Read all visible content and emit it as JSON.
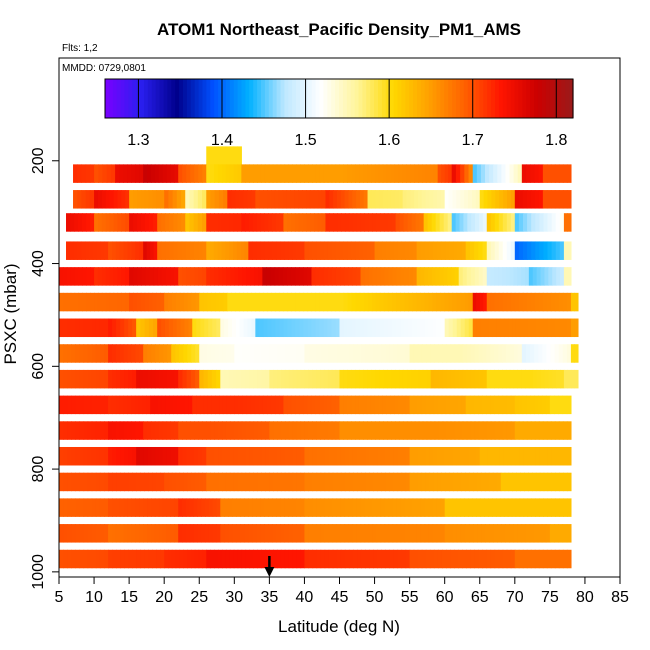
{
  "chart_data": {
    "type": "heatmap",
    "title": "ATOM1 Northeast_Pacific Density_PM1_AMS",
    "flights_note": "Flts: 1,2",
    "date_note": "MMDD: 0729,0801",
    "xlabel": "Latitude (deg N)",
    "ylabel": "PSXC (mbar)",
    "xlim": [
      5,
      85
    ],
    "ylim": [
      1010,
      0
    ],
    "x_ticks": [
      "5",
      "10",
      "15",
      "20",
      "25",
      "30",
      "35",
      "40",
      "45",
      "50",
      "55",
      "60",
      "65",
      "70",
      "75",
      "80",
      "85"
    ],
    "y_ticks": [
      "200",
      "400",
      "600",
      "800",
      "1000"
    ],
    "colorbar": {
      "range": [
        1.26,
        1.82
      ],
      "ticks": [
        "1.3",
        "1.4",
        "1.5",
        "1.6",
        "1.7",
        "1.8"
      ],
      "colors": [
        "#7a00ff",
        "#2a1ff0",
        "#00008c",
        "#0050ff",
        "#00b0ff",
        "#bfe8ff",
        "#ffffff",
        "#fff59a",
        "#ffd800",
        "#ffa000",
        "#ff6000",
        "#ff1500",
        "#cc0000",
        "#9a1a1a"
      ]
    },
    "marker": {
      "label": "arrow",
      "latitude": 35
    },
    "series": [
      {
        "p": 190,
        "segments": [
          [
            26,
            31,
            1.6
          ]
        ]
      },
      {
        "p": 225,
        "segments": [
          [
            7,
            10,
            1.72
          ],
          [
            10,
            13,
            1.7
          ],
          [
            13,
            17,
            1.75
          ],
          [
            17,
            22,
            1.78
          ],
          [
            22,
            26,
            1.7
          ],
          [
            26,
            31,
            1.6
          ],
          [
            31,
            45,
            1.65
          ],
          [
            45,
            59,
            1.65
          ],
          [
            59,
            61,
            1.7
          ],
          [
            61,
            64,
            1.75
          ],
          [
            64,
            71,
            1.45
          ],
          [
            71,
            74,
            1.75
          ],
          [
            74,
            78,
            1.7
          ]
        ]
      },
      {
        "p": 275,
        "segments": [
          [
            7,
            10,
            1.7
          ],
          [
            10,
            15,
            1.75
          ],
          [
            15,
            20,
            1.65
          ],
          [
            20,
            23,
            1.68
          ],
          [
            23,
            26,
            1.55
          ],
          [
            26,
            29,
            1.65
          ],
          [
            29,
            33,
            1.72
          ],
          [
            33,
            43,
            1.7
          ],
          [
            43,
            49,
            1.72
          ],
          [
            49,
            54,
            1.58
          ],
          [
            54,
            60,
            1.57
          ],
          [
            60,
            65,
            1.52
          ],
          [
            65,
            70,
            1.6
          ],
          [
            70,
            74,
            1.75
          ],
          [
            74,
            78,
            1.7
          ]
        ]
      },
      {
        "p": 320,
        "segments": [
          [
            6,
            10,
            1.75
          ],
          [
            10,
            15,
            1.68
          ],
          [
            15,
            19,
            1.75
          ],
          [
            19,
            23,
            1.68
          ],
          [
            23,
            26,
            1.62
          ],
          [
            26,
            31,
            1.72
          ],
          [
            31,
            37,
            1.73
          ],
          [
            37,
            43,
            1.68
          ],
          [
            43,
            53,
            1.72
          ],
          [
            53,
            57,
            1.7
          ],
          [
            57,
            61,
            1.62
          ],
          [
            61,
            66,
            1.45
          ],
          [
            66,
            70,
            1.62
          ],
          [
            70,
            77,
            1.45
          ],
          [
            77,
            78,
            1.68
          ]
        ]
      },
      {
        "p": 375,
        "segments": [
          [
            6,
            12,
            1.72
          ],
          [
            12,
            17,
            1.7
          ],
          [
            17,
            19,
            1.76
          ],
          [
            19,
            26,
            1.68
          ],
          [
            26,
            32,
            1.64
          ],
          [
            32,
            40,
            1.72
          ],
          [
            40,
            50,
            1.7
          ],
          [
            50,
            56,
            1.67
          ],
          [
            56,
            63,
            1.65
          ],
          [
            63,
            66,
            1.62
          ],
          [
            66,
            70,
            1.55
          ],
          [
            70,
            77,
            1.4
          ],
          [
            77,
            78,
            1.55
          ]
        ]
      },
      {
        "p": 425,
        "segments": [
          [
            5,
            10,
            1.74
          ],
          [
            10,
            15,
            1.72
          ],
          [
            15,
            22,
            1.76
          ],
          [
            22,
            26,
            1.7
          ],
          [
            26,
            34,
            1.72
          ],
          [
            34,
            41,
            1.78
          ],
          [
            41,
            48,
            1.72
          ],
          [
            48,
            56,
            1.68
          ],
          [
            56,
            62,
            1.63
          ],
          [
            62,
            66,
            1.57
          ],
          [
            66,
            72,
            1.48
          ],
          [
            72,
            77,
            1.45
          ],
          [
            77,
            78,
            1.55
          ]
        ]
      },
      {
        "p": 475,
        "segments": [
          [
            5,
            15,
            1.68
          ],
          [
            15,
            20,
            1.7
          ],
          [
            20,
            25,
            1.67
          ],
          [
            25,
            29,
            1.62
          ],
          [
            29,
            45,
            1.6
          ],
          [
            45,
            64,
            1.6
          ],
          [
            64,
            66,
            1.75
          ],
          [
            66,
            78,
            1.68
          ],
          [
            78,
            79,
            1.62
          ]
        ]
      },
      {
        "p": 525,
        "segments": [
          [
            5,
            12,
            1.72
          ],
          [
            12,
            16,
            1.73
          ],
          [
            16,
            19,
            1.62
          ],
          [
            19,
            24,
            1.7
          ],
          [
            24,
            28,
            1.6
          ],
          [
            28,
            33,
            1.53
          ],
          [
            33,
            45,
            1.45
          ],
          [
            45,
            60,
            1.5
          ],
          [
            60,
            64,
            1.55
          ],
          [
            64,
            78,
            1.67
          ],
          [
            78,
            79,
            1.65
          ]
        ]
      },
      {
        "p": 575,
        "segments": [
          [
            5,
            12,
            1.68
          ],
          [
            12,
            17,
            1.72
          ],
          [
            17,
            21,
            1.67
          ],
          [
            21,
            25,
            1.62
          ],
          [
            25,
            30,
            1.53
          ],
          [
            30,
            40,
            1.52
          ],
          [
            40,
            55,
            1.53
          ],
          [
            55,
            62,
            1.55
          ],
          [
            62,
            71,
            1.55
          ],
          [
            71,
            78,
            1.5
          ],
          [
            78,
            79,
            1.6
          ]
        ]
      },
      {
        "p": 625,
        "segments": [
          [
            5,
            12,
            1.7
          ],
          [
            12,
            16,
            1.72
          ],
          [
            16,
            22,
            1.75
          ],
          [
            22,
            25,
            1.72
          ],
          [
            25,
            28,
            1.63
          ],
          [
            28,
            35,
            1.55
          ],
          [
            35,
            45,
            1.57
          ],
          [
            45,
            58,
            1.6
          ],
          [
            58,
            66,
            1.63
          ],
          [
            66,
            72,
            1.6
          ],
          [
            72,
            77,
            1.6
          ],
          [
            77,
            79,
            1.58
          ]
        ]
      },
      {
        "p": 675,
        "segments": [
          [
            5,
            12,
            1.73
          ],
          [
            12,
            18,
            1.72
          ],
          [
            18,
            24,
            1.74
          ],
          [
            24,
            30,
            1.72
          ],
          [
            30,
            37,
            1.72
          ],
          [
            37,
            45,
            1.7
          ],
          [
            45,
            55,
            1.67
          ],
          [
            55,
            63,
            1.65
          ],
          [
            63,
            70,
            1.63
          ],
          [
            70,
            75,
            1.62
          ],
          [
            75,
            78,
            1.6
          ]
        ]
      },
      {
        "p": 725,
        "segments": [
          [
            5,
            12,
            1.72
          ],
          [
            12,
            17,
            1.74
          ],
          [
            17,
            22,
            1.72
          ],
          [
            22,
            26,
            1.7
          ],
          [
            26,
            35,
            1.7
          ],
          [
            35,
            45,
            1.68
          ],
          [
            45,
            58,
            1.66
          ],
          [
            58,
            70,
            1.66
          ],
          [
            70,
            78,
            1.64
          ]
        ]
      },
      {
        "p": 775,
        "segments": [
          [
            5,
            12,
            1.71
          ],
          [
            12,
            16,
            1.73
          ],
          [
            16,
            22,
            1.76
          ],
          [
            22,
            26,
            1.72
          ],
          [
            26,
            40,
            1.7
          ],
          [
            40,
            55,
            1.68
          ],
          [
            55,
            65,
            1.65
          ],
          [
            65,
            78,
            1.63
          ]
        ]
      },
      {
        "p": 825,
        "segments": [
          [
            5,
            12,
            1.7
          ],
          [
            12,
            20,
            1.71
          ],
          [
            20,
            26,
            1.7
          ],
          [
            26,
            40,
            1.68
          ],
          [
            40,
            55,
            1.67
          ],
          [
            55,
            68,
            1.65
          ],
          [
            68,
            78,
            1.62
          ]
        ]
      },
      {
        "p": 875,
        "segments": [
          [
            5,
            12,
            1.69
          ],
          [
            12,
            22,
            1.7
          ],
          [
            22,
            28,
            1.72
          ],
          [
            28,
            40,
            1.67
          ],
          [
            40,
            60,
            1.66
          ],
          [
            60,
            78,
            1.62
          ]
        ]
      },
      {
        "p": 925,
        "segments": [
          [
            5,
            12,
            1.7
          ],
          [
            12,
            22,
            1.68
          ],
          [
            22,
            28,
            1.72
          ],
          [
            28,
            40,
            1.7
          ],
          [
            40,
            60,
            1.67
          ],
          [
            60,
            75,
            1.66
          ],
          [
            75,
            78,
            1.64
          ]
        ]
      },
      {
        "p": 975,
        "segments": [
          [
            5,
            12,
            1.7
          ],
          [
            12,
            20,
            1.71
          ],
          [
            20,
            26,
            1.72
          ],
          [
            26,
            40,
            1.74
          ],
          [
            40,
            55,
            1.72
          ],
          [
            55,
            70,
            1.7
          ],
          [
            70,
            78,
            1.68
          ]
        ]
      }
    ]
  }
}
